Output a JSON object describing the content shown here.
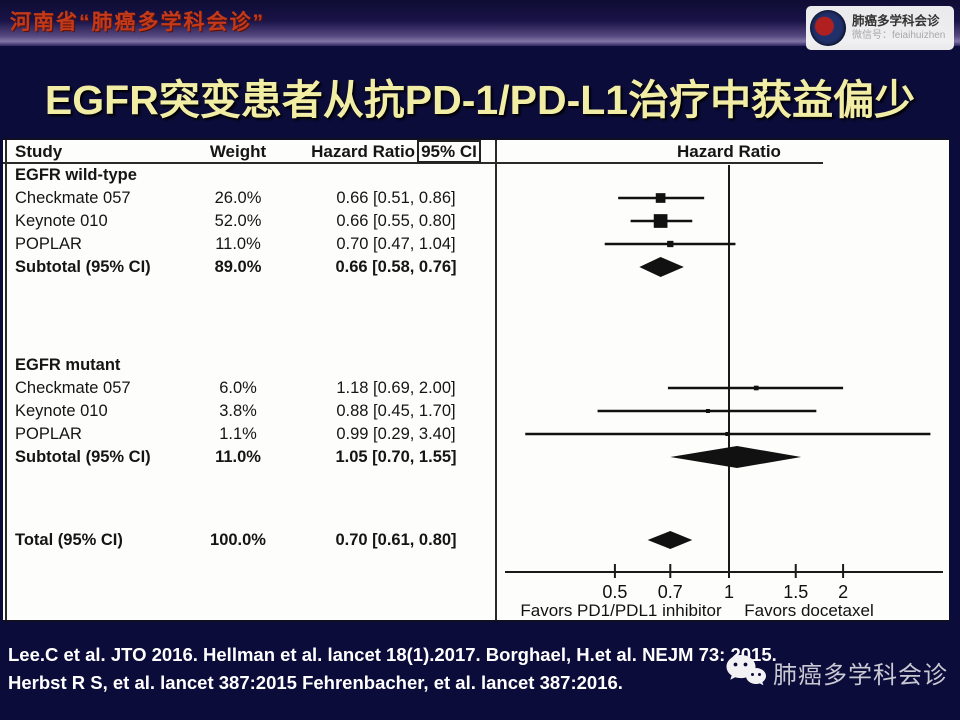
{
  "topbar": {
    "text": "河南省“肺癌多学科会诊”"
  },
  "wechat_badge": {
    "name": "肺癌多学科会诊",
    "account_line": "微信号：feiaihuizhen"
  },
  "title": "EGFR突变患者从抗PD-1/PD-L1治疗中获益偏少",
  "table_headers": {
    "study": "Study",
    "weight": "Weight",
    "hr_prefix": "Hazard Ratio",
    "hr_ci_boxed": "95% CI"
  },
  "plot_header": "Hazard Ratio",
  "chart_data": {
    "type": "forest",
    "x_scale": "log10",
    "x_range": [
      0.25,
      4
    ],
    "null_line": 1,
    "axis_ticks": [
      0.5,
      0.7,
      1,
      1.5,
      2
    ],
    "tick_labels": [
      "0.5",
      "0.7",
      "1",
      "1.5",
      "2"
    ],
    "favors_left": "Favors PD1/PDL1 inhibitor",
    "favors_right": "Favors docetaxel",
    "groups": [
      {
        "label": "EGFR wild-type",
        "studies": [
          {
            "study": "Checkmate 057",
            "weight": "26.0%",
            "weight_value": 26.0,
            "hr": 0.66,
            "ci_low": 0.51,
            "ci_high": 0.86,
            "hr_text": "0.66 [0.51, 0.86]"
          },
          {
            "study": "Keynote 010",
            "weight": "52.0%",
            "weight_value": 52.0,
            "hr": 0.66,
            "ci_low": 0.55,
            "ci_high": 0.8,
            "hr_text": "0.66 [0.55, 0.80]"
          },
          {
            "study": "POPLAR",
            "weight": "11.0%",
            "weight_value": 11.0,
            "hr": 0.7,
            "ci_low": 0.47,
            "ci_high": 1.04,
            "hr_text": "0.70 [0.47, 1.04]"
          }
        ],
        "subtotal": {
          "label": "Subtotal (95% CI)",
          "weight": "89.0%",
          "hr": 0.66,
          "ci_low": 0.58,
          "ci_high": 0.76,
          "hr_text": "0.66 [0.58, 0.76]"
        }
      },
      {
        "label": "EGFR mutant",
        "studies": [
          {
            "study": "Checkmate 057",
            "weight": "6.0%",
            "weight_value": 6.0,
            "hr": 1.18,
            "ci_low": 0.69,
            "ci_high": 2.0,
            "hr_text": "1.18 [0.69, 2.00]"
          },
          {
            "study": "Keynote 010",
            "weight": "3.8%",
            "weight_value": 3.8,
            "hr": 0.88,
            "ci_low": 0.45,
            "ci_high": 1.7,
            "hr_text": "0.88 [0.45, 1.70]"
          },
          {
            "study": "POPLAR",
            "weight": "1.1%",
            "weight_value": 1.1,
            "hr": 0.99,
            "ci_low": 0.29,
            "ci_high": 3.4,
            "hr_text": "0.99 [0.29, 3.40]"
          }
        ],
        "subtotal": {
          "label": "Subtotal (95% CI)",
          "weight": "11.0%",
          "hr": 1.05,
          "ci_low": 0.7,
          "ci_high": 1.55,
          "hr_text": "1.05 [0.70, 1.55]"
        }
      }
    ],
    "total": {
      "label": "Total (95% CI)",
      "weight": "100.0%",
      "hr": 0.7,
      "ci_low": 0.61,
      "ci_high": 0.8,
      "hr_text": "0.70 [0.61, 0.80]"
    }
  },
  "citation": {
    "line1": "Lee.C et al. JTO 2016. Hellman et al. lancet 18(1).2017. Borghael, H.et al. NEJM 73: 2015.",
    "line2": "Herbst R S, et al. lancet 387:2015 Fehrenbacher, et al. lancet 387:2016."
  },
  "watermark": {
    "text": "肺癌多学科会诊"
  },
  "colors": {
    "background": "#0c0c3a",
    "topbar_text": "#c23a1a",
    "title_text": "#f2eda4",
    "panel_bg": "#fdfdfb",
    "ink": "#151515"
  }
}
